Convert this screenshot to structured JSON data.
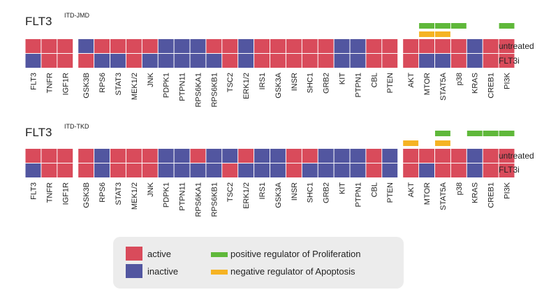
{
  "colors": {
    "active": "#d94b5b",
    "inactive": "#5256a0",
    "proliferation": "#5fb83a",
    "apoptosis": "#f5b324",
    "legend_bg": "#ececec"
  },
  "row_labels": [
    "untreated",
    "FLT3i"
  ],
  "genes": [
    "FLT3",
    "TNFR",
    "IGF1R",
    "GSK3B",
    "RPS6",
    "STAT3",
    "MEK1/2",
    "JNK",
    "PDPK1",
    "PTPN11",
    "RPS6KA1",
    "RPS6KB1",
    "TSC2",
    "ERK1/2",
    "IRS1",
    "GSK3A",
    "INSR",
    "SHC1",
    "GRB2",
    "KIT",
    "PTPN1",
    "CBL",
    "PTEN",
    "AKT",
    "MTOR",
    "STAT5A",
    "p38",
    "KRAS",
    "CREB1",
    "PI3K"
  ],
  "panels": [
    {
      "title": "FLT3",
      "superscript": "ITD-JMD",
      "untreated": [
        "A",
        "A",
        "A",
        "I",
        "A",
        "A",
        "A",
        "A",
        "I",
        "I",
        "I",
        "A",
        "A",
        "I",
        "A",
        "A",
        "A",
        "A",
        "A",
        "I",
        "I",
        "A",
        "A",
        "A",
        "A",
        "A",
        "A",
        "I",
        "A",
        "A"
      ],
      "flt3i": [
        "I",
        "A",
        "A",
        "A",
        "I",
        "I",
        "A",
        "I",
        "I",
        "I",
        "I",
        "I",
        "A",
        "I",
        "A",
        "A",
        "A",
        "A",
        "A",
        "I",
        "I",
        "A",
        "A",
        "A",
        "I",
        "I",
        "A",
        "I",
        "A",
        "A"
      ],
      "proliferation_genes": [
        "MTOR",
        "STAT5A",
        "p38",
        "PI3K"
      ],
      "apoptosis_genes": [
        "MTOR",
        "STAT5A"
      ]
    },
    {
      "title": "FLT3",
      "superscript": "ITD-TKD",
      "untreated": [
        "A",
        "A",
        "A",
        "A",
        "I",
        "A",
        "A",
        "A",
        "I",
        "I",
        "A",
        "I",
        "I",
        "A",
        "I",
        "I",
        "A",
        "A",
        "I",
        "I",
        "I",
        "A",
        "I",
        "A",
        "A",
        "A",
        "A",
        "I",
        "A",
        "A"
      ],
      "flt3i": [
        "I",
        "A",
        "A",
        "A",
        "I",
        "A",
        "A",
        "A",
        "I",
        "I",
        "I",
        "I",
        "A",
        "I",
        "I",
        "I",
        "A",
        "I",
        "I",
        "I",
        "I",
        "A",
        "I",
        "A",
        "I",
        "A",
        "A",
        "I",
        "A",
        "A"
      ],
      "proliferation_genes": [
        "STAT5A",
        "KRAS",
        "CREB1",
        "PI3K"
      ],
      "apoptosis_genes": [
        "AKT",
        "STAT5A"
      ]
    }
  ],
  "legend": {
    "active": "active",
    "inactive": "inactive",
    "proliferation": "positive regulator of Proliferation",
    "apoptosis": "negative regulator of Apoptosis"
  }
}
